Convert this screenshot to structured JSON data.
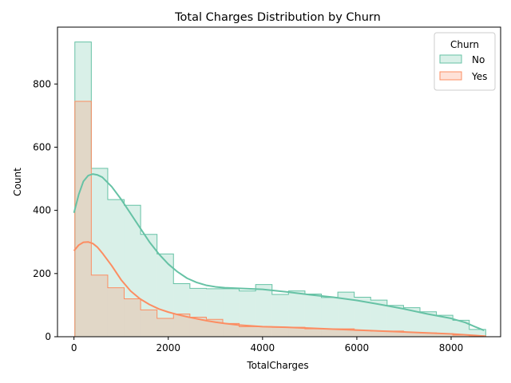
{
  "chart_data": {
    "type": "histogram",
    "title": "Total Charges Distribution by Churn",
    "xlabel": "TotalCharges",
    "ylabel": "Count",
    "xlim": [
      -350,
      9050
    ],
    "ylim": [
      0,
      980
    ],
    "xticks": [
      0,
      2000,
      4000,
      6000,
      8000
    ],
    "xtick_labels": [
      "0",
      "2000",
      "4000",
      "6000",
      "8000"
    ],
    "yticks": [
      0,
      200,
      400,
      600,
      800
    ],
    "ytick_labels": [
      "0",
      "200",
      "400",
      "600",
      "800"
    ],
    "grid": false,
    "bin_edges": [
      18.8,
      367.4,
      716.0,
      1064.6,
      1413.2,
      1761.8,
      2110.4,
      2459.0,
      2807.6,
      3156.2,
      3504.8,
      3853.4,
      4202.0,
      4550.6,
      4899.2,
      5247.8,
      5596.4,
      5945.0,
      6293.6,
      6642.2,
      6990.8,
      7339.4,
      7688.0,
      8036.6,
      8385.2,
      8733.8
    ],
    "series": [
      {
        "name": "No",
        "color": "#66c2a5",
        "counts": [
          933,
          533,
          434,
          416,
          324,
          262,
          168,
          153,
          152,
          152,
          145,
          165,
          134,
          145,
          135,
          124,
          141,
          125,
          116,
          99,
          92,
          79,
          68,
          52,
          23
        ],
        "kde_x": [
          0,
          100,
          200,
          300,
          400,
          500,
          600,
          800,
          1000,
          1200,
          1400,
          1600,
          1800,
          2000,
          2200,
          2400,
          2600,
          2800,
          3000,
          3200,
          3500,
          4000,
          4500,
          5000,
          5500,
          6000,
          6500,
          7000,
          7500,
          8000,
          8300,
          8500,
          8700
        ],
        "kde_y": [
          392,
          450,
          492,
          510,
          515,
          512,
          505,
          475,
          435,
          390,
          345,
          300,
          262,
          230,
          205,
          185,
          172,
          163,
          158,
          155,
          153,
          150,
          142,
          133,
          125,
          115,
          102,
          88,
          72,
          58,
          45,
          32,
          20
        ]
      },
      {
        "name": "Yes",
        "color": "#fc8d62",
        "counts": [
          745,
          195,
          155,
          120,
          85,
          58,
          72,
          62,
          55,
          42,
          32,
          32,
          30,
          30,
          25,
          25,
          25,
          20,
          18,
          18,
          14,
          12,
          10,
          5,
          3
        ],
        "kde_x": [
          0,
          100,
          200,
          300,
          400,
          500,
          600,
          800,
          1000,
          1200,
          1400,
          1600,
          1800,
          2000,
          2200,
          2400,
          2600,
          2800,
          3000,
          3200,
          3500,
          4000,
          4500,
          5000,
          5500,
          6000,
          6500,
          7000,
          7500,
          8000,
          8300,
          8500,
          8700
        ],
        "kde_y": [
          272,
          290,
          299,
          300,
          295,
          283,
          265,
          225,
          180,
          145,
          120,
          102,
          88,
          78,
          70,
          63,
          57,
          51,
          46,
          42,
          37,
          32,
          30,
          27,
          24,
          21,
          18,
          15,
          12,
          9,
          6,
          4,
          2
        ]
      }
    ],
    "legend": {
      "title": "Churn",
      "position": "top-right",
      "entries": [
        "No",
        "Yes"
      ]
    }
  }
}
